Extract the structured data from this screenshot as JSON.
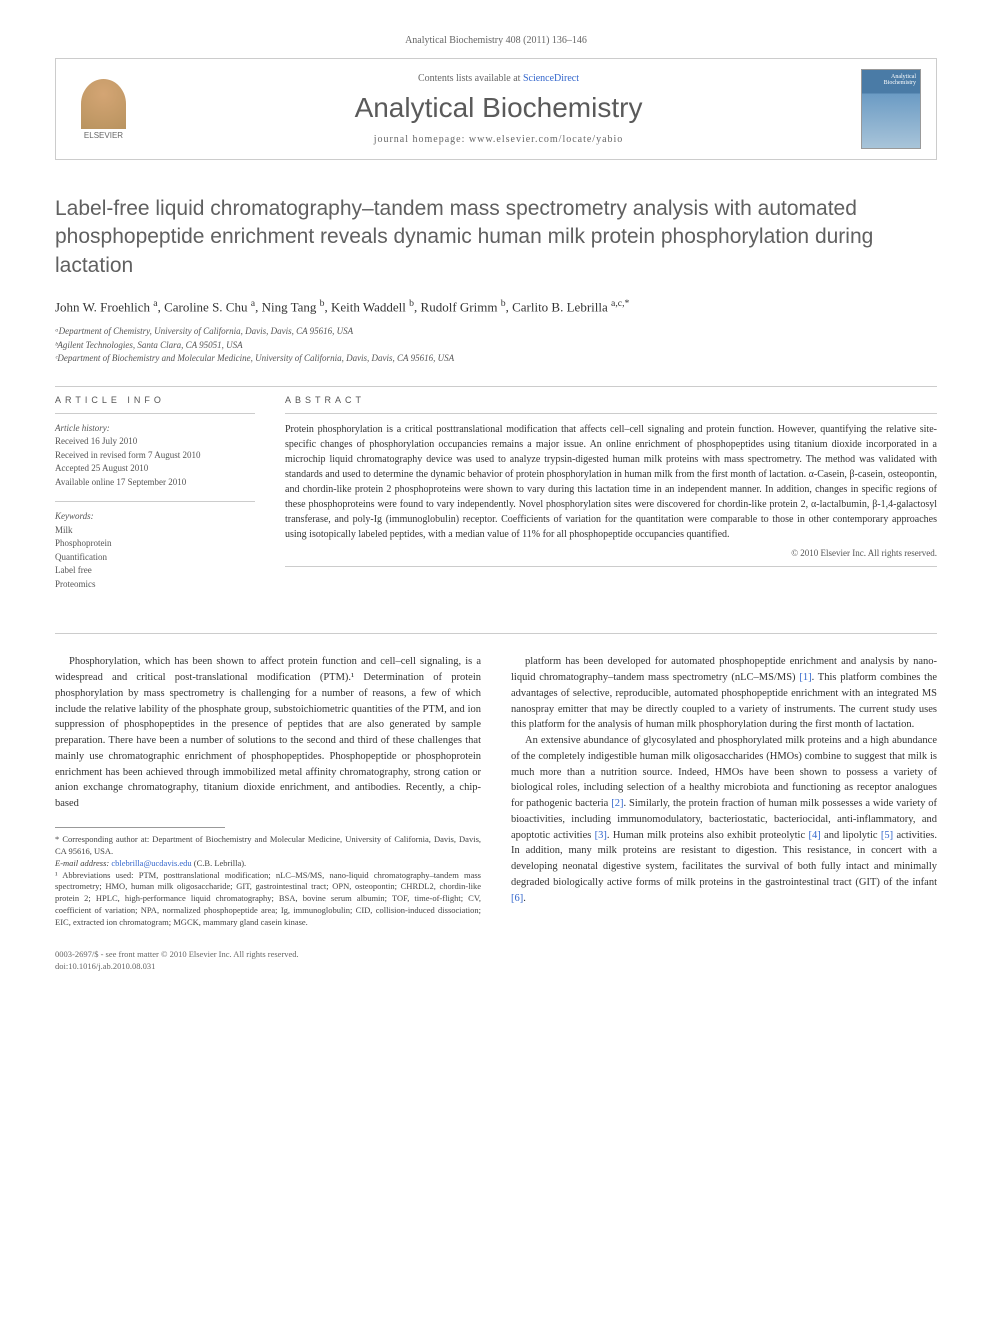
{
  "journal_ref": "Analytical Biochemistry 408 (2011) 136–146",
  "header": {
    "contents_prefix": "Contents lists available at ",
    "contents_link": "ScienceDirect",
    "journal_title": "Analytical Biochemistry",
    "homepage_label": "journal homepage: www.elsevier.com/locate/yabio",
    "publisher": "ELSEVIER",
    "cover_label": "Analytical Biochemistry"
  },
  "article": {
    "title": "Label-free liquid chromatography–tandem mass spectrometry analysis with automated phosphopeptide enrichment reveals dynamic human milk protein phosphorylation during lactation",
    "authors_html": "John W. Froehlich <sup>a</sup>, Caroline S. Chu <sup>a</sup>, Ning Tang <sup>b</sup>, Keith Waddell <sup>b</sup>, Rudolf Grimm <sup>b</sup>, Carlito B. Lebrilla <sup>a,c,*</sup>",
    "affiliations": [
      "ᵃDepartment of Chemistry, University of California, Davis, Davis, CA 95616, USA",
      "ᵇAgilent Technologies, Santa Clara, CA 95051, USA",
      "ᶜDepartment of Biochemistry and Molecular Medicine, University of California, Davis, Davis, CA 95616, USA"
    ]
  },
  "info": {
    "heading": "ARTICLE INFO",
    "history_title": "Article history:",
    "history": [
      "Received 16 July 2010",
      "Received in revised form 7 August 2010",
      "Accepted 25 August 2010",
      "Available online 17 September 2010"
    ],
    "keywords_title": "Keywords:",
    "keywords": [
      "Milk",
      "Phosphoprotein",
      "Quantification",
      "Label free",
      "Proteomics"
    ]
  },
  "abstract": {
    "heading": "ABSTRACT",
    "text": "Protein phosphorylation is a critical posttranslational modification that affects cell–cell signaling and protein function. However, quantifying the relative site-specific changes of phosphorylation occupancies remains a major issue. An online enrichment of phosphopeptides using titanium dioxide incorporated in a microchip liquid chromatography device was used to analyze trypsin-digested human milk proteins with mass spectrometry. The method was validated with standards and used to determine the dynamic behavior of protein phosphorylation in human milk from the first month of lactation. α-Casein, β-casein, osteopontin, and chordin-like protein 2 phosphoproteins were shown to vary during this lactation time in an independent manner. In addition, changes in specific regions of these phosphoproteins were found to vary independently. Novel phosphorylation sites were discovered for chordin-like protein 2, α-lactalbumin, β-1,4-galactosyl transferase, and poly-Ig (immunoglobulin) receptor. Coefficients of variation for the quantitation were comparable to those in other contemporary approaches using isotopically labeled peptides, with a median value of 11% for all phosphopeptide occupancies quantified.",
    "copyright": "© 2010 Elsevier Inc. All rights reserved."
  },
  "body": {
    "col1_p1": "Phosphorylation, which has been shown to affect protein function and cell–cell signaling, is a widespread and critical post-translational modification (PTM).¹ Determination of protein phosphorylation by mass spectrometry is challenging for a number of reasons, a few of which include the relative lability of the phosphate group, substoichiometric quantities of the PTM, and ion suppression of phosphopeptides in the presence of peptides that are also generated by sample preparation. There have been a number of solutions to the second and third of these challenges that mainly use chromatographic enrichment of phosphopeptides. Phosphopeptide or phosphoprotein enrichment has been achieved through immobilized metal affinity chromatography, strong cation or anion exchange chromatography, titanium dioxide enrichment, and antibodies. Recently, a chip-based",
    "col2_p1_part1": "platform has been developed for automated phosphopeptide enrichment and analysis by nano-liquid chromatography–tandem mass spectrometry (nLC–MS/MS) ",
    "col2_p1_ref1": "[1]",
    "col2_p1_part2": ". This platform combines the advantages of selective, reproducible, automated phosphopeptide enrichment with an integrated MS nanospray emitter that may be directly coupled to a variety of instruments. The current study uses this platform for the analysis of human milk phosphorylation during the first month of lactation.",
    "col2_p2_part1": "An extensive abundance of glycosylated and phosphorylated milk proteins and a high abundance of the completely indigestible human milk oligosaccharides (HMOs) combine to suggest that milk is much more than a nutrition source. Indeed, HMOs have been shown to possess a variety of biological roles, including selection of a healthy microbiota and functioning as receptor analogues for pathogenic bacteria ",
    "col2_p2_ref2": "[2]",
    "col2_p2_part2": ". Similarly, the protein fraction of human milk possesses a wide variety of bioactivities, including immunomodulatory, bacteriostatic, bacteriocidal, anti-inflammatory, and apoptotic activities ",
    "col2_p2_ref3": "[3]",
    "col2_p2_part3": ". Human milk proteins also exhibit proteolytic ",
    "col2_p2_ref4": "[4]",
    "col2_p2_part4": " and lipolytic ",
    "col2_p2_ref5": "[5]",
    "col2_p2_part5": " activities. In addition, many milk proteins are resistant to digestion. This resistance, in concert with a developing neonatal digestive system, facilitates the survival of both fully intact and minimally degraded biologically active forms of milk proteins in the gastrointestinal tract (GIT) of the infant ",
    "col2_p2_ref6": "[6]",
    "col2_p2_part6": "."
  },
  "footnotes": {
    "corresponding": "* Corresponding author at: Department of Biochemistry and Molecular Medicine, University of California, Davis, Davis, CA 95616, USA.",
    "email_label": "E-mail address: ",
    "email": "cblebrilla@ucdavis.edu",
    "email_suffix": " (C.B. Lebrilla).",
    "abbreviations": "¹ Abbreviations used: PTM, posttranslational modification; nLC–MS/MS, nano-liquid chromatography–tandem mass spectrometry; HMO, human milk oligosaccharide; GIT, gastrointestinal tract; OPN, osteopontin; CHRDL2, chordin-like protein 2; HPLC, high-performance liquid chromatography; BSA, bovine serum albumin; TOF, time-of-flight; CV, coefficient of variation; NPA, normalized phosphopeptide area; Ig, immunoglobulin; CID, collision-induced dissociation; EIC, extracted ion chromatogram; MGCK, mammary gland casein kinase."
  },
  "footer": {
    "line1": "0003-2697/$ - see front matter © 2010 Elsevier Inc. All rights reserved.",
    "line2": "doi:10.1016/j.ab.2010.08.031"
  },
  "colors": {
    "link": "#3366cc",
    "heading_gray": "#606060",
    "text": "#333333",
    "muted": "#666666"
  }
}
